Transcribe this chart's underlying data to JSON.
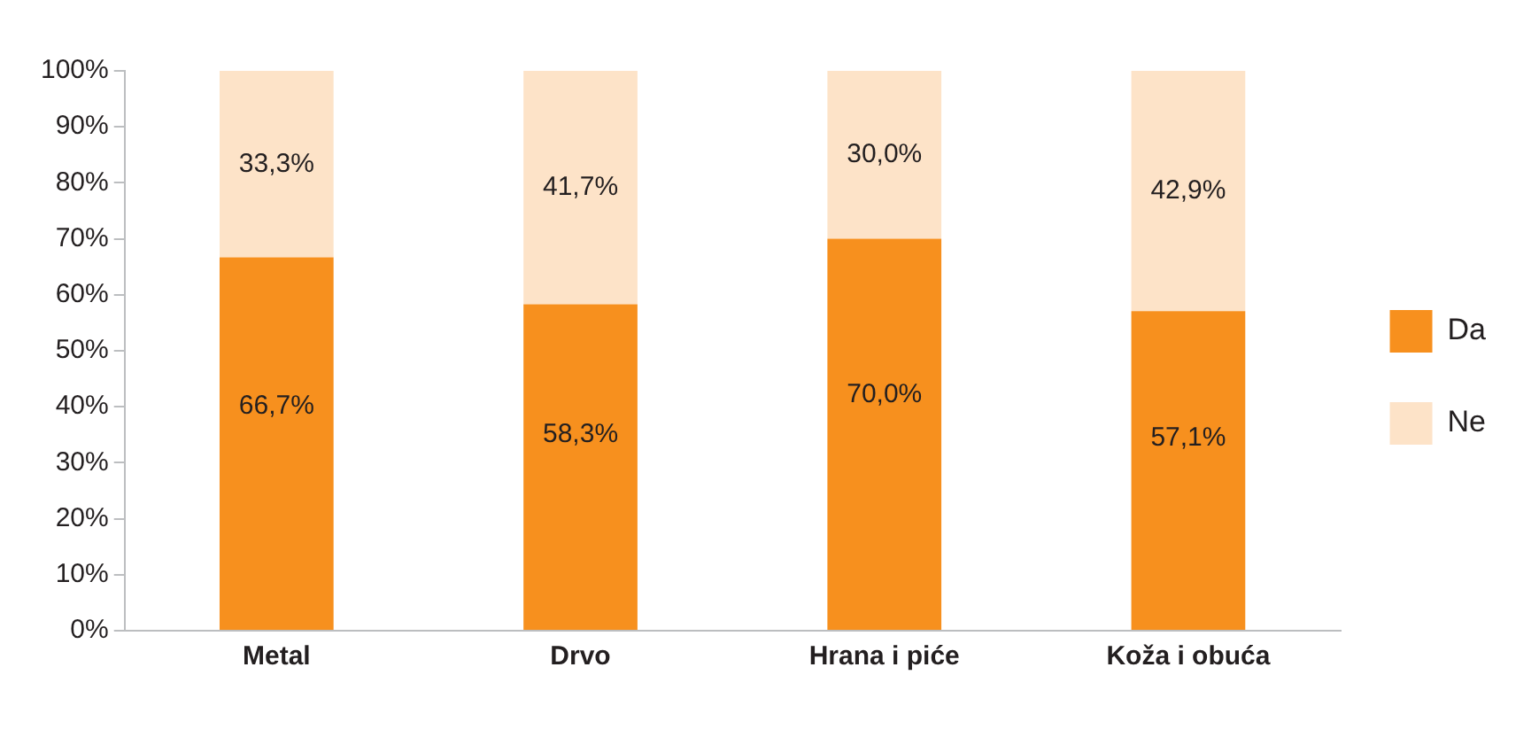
{
  "chart_data": {
    "type": "bar",
    "stacked": true,
    "categories": [
      "Metal",
      "Drvo",
      "Hrana i piće",
      "Koža i obuća"
    ],
    "series": [
      {
        "name": "Da",
        "color": "#f7901e",
        "values": [
          66.7,
          58.3,
          70.0,
          57.1
        ],
        "value_labels": [
          "66,7%",
          "58,3%",
          "70,0%",
          "57,1%"
        ]
      },
      {
        "name": "Ne",
        "color": "#fde3c8",
        "values": [
          33.3,
          41.7,
          30.0,
          42.9
        ],
        "value_labels": [
          "33,3%",
          "41,7%",
          "30,0%",
          "42,9%"
        ]
      }
    ],
    "ylim": [
      0,
      100
    ],
    "yticks": [
      {
        "value": 0,
        "label": "0%"
      },
      {
        "value": 10,
        "label": "10%"
      },
      {
        "value": 20,
        "label": "20%"
      },
      {
        "value": 30,
        "label": "30%"
      },
      {
        "value": 40,
        "label": "40%"
      },
      {
        "value": 50,
        "label": "50%"
      },
      {
        "value": 60,
        "label": "60%"
      },
      {
        "value": 70,
        "label": "70%"
      },
      {
        "value": 80,
        "label": "80%"
      },
      {
        "value": 90,
        "label": "90%"
      },
      {
        "value": 100,
        "label": "100%"
      }
    ],
    "grid": false,
    "legend": "right"
  }
}
